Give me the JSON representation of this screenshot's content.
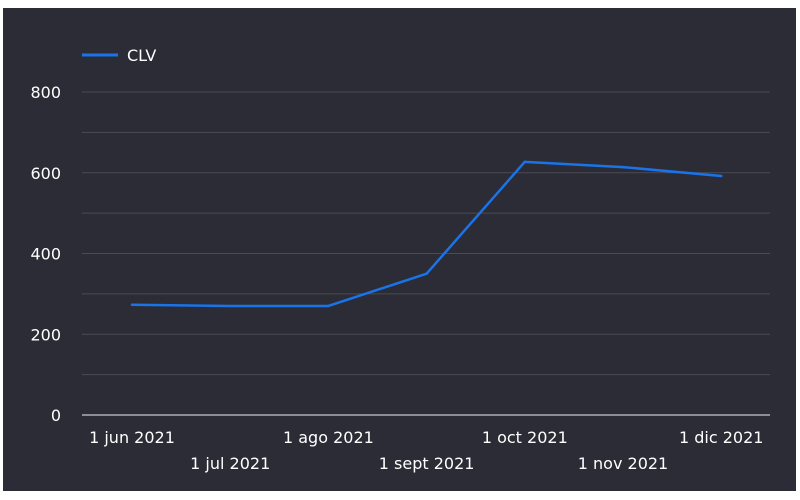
{
  "chart_data": {
    "type": "line",
    "x": [
      "1 jun 2021",
      "1 jul 2021",
      "1 ago 2021",
      "1 sept 2021",
      "1 oct 2021",
      "1 nov 2021",
      "1 dic 2021"
    ],
    "series": [
      {
        "name": "CLV",
        "values": [
          273,
          270,
          270,
          350,
          627,
          614,
          592
        ],
        "color": "#1a73e8"
      }
    ],
    "ylim": [
      0,
      900
    ],
    "yticks": [
      0,
      200,
      400,
      600,
      800
    ],
    "grid": true,
    "legend": "top-left",
    "title": "",
    "xlabel": "",
    "ylabel": "",
    "background": "#2b2c35",
    "grid_color": "#4a4b55",
    "text_color": "#ffffff"
  }
}
